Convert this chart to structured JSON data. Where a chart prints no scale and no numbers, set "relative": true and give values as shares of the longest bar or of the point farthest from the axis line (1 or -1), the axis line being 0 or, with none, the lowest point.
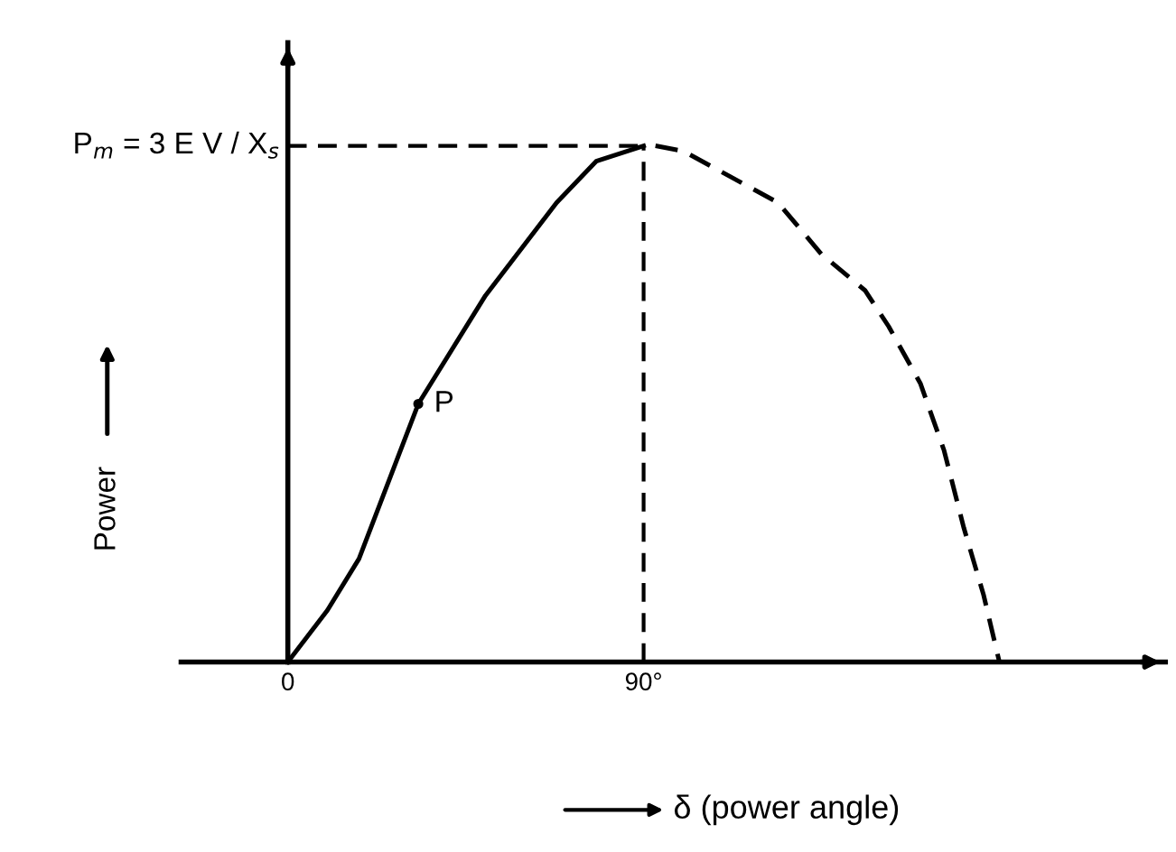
{
  "chart_data": {
    "type": "line",
    "relative": true,
    "xlabel": "δ (power angle)",
    "ylabel": "Power",
    "xlim": [
      -27,
      222
    ],
    "xticks": [
      0,
      {
        "value": 90,
        "label": "90°"
      }
    ],
    "x": [
      0,
      10,
      18,
      33,
      50,
      68,
      78,
      90
    ],
    "series": [
      {
        "color": "#000000",
        "line_style": "solid",
        "values": [
          0,
          0.1,
          0.2,
          0.5,
          0.71,
          0.89,
          0.97,
          1
        ]
      },
      {
        "color": "#000000",
        "line_style": "dashed",
        "x": [
          93,
          100,
          112,
          124,
          135,
          146,
          152,
          160,
          166,
          171,
          176,
          180
        ],
        "values": [
          1,
          0.99,
          0.94,
          0.89,
          0.79,
          0.72,
          0.65,
          0.54,
          0.41,
          0.26,
          0.13,
          0
        ]
      }
    ],
    "ref_lines": [
      {
        "axis": "y",
        "value": 1,
        "color": "#000000",
        "line_style": "dashed"
      },
      {
        "axis": "x",
        "value": 90,
        "color": "#000000",
        "line_style": "dashed"
      }
    ],
    "annotations": [
      {
        "text": "P",
        "x": 33,
        "y": 0.5
      },
      {
        "text": "P$_{m}$ = 3 E V / X$_{s}$",
        "x": 0,
        "y": 1
      }
    ],
    "grid": false,
    "legend": false
  }
}
